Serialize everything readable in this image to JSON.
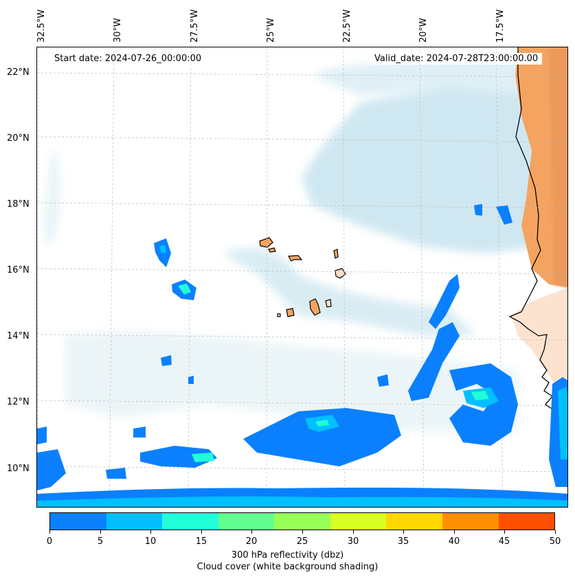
{
  "header": {
    "start_date": "Start date: 2024-07-26_00:00:00",
    "valid_date": "Valid_date: 2024-07-28T23:00:00.00"
  },
  "axes": {
    "lon_labels": [
      "32.5°W",
      "30°W",
      "27.5°W",
      "25°W",
      "22.5°W",
      "20°W",
      "17.5°W"
    ],
    "lat_labels": [
      "22°N",
      "20°N",
      "18°N",
      "16°N",
      "14°N",
      "12°N",
      "10°N"
    ],
    "lon_range": [
      -32.5,
      -15
    ],
    "lat_range": [
      8.9,
      22.8
    ],
    "grid": "dashed"
  },
  "colorbar": {
    "tick_labels": [
      "0",
      "5",
      "10",
      "15",
      "20",
      "25",
      "30",
      "35",
      "40",
      "45",
      "50"
    ],
    "colors": [
      "#0a80ff",
      "#00c0ff",
      "#20ffd8",
      "#60ff90",
      "#98ff58",
      "#d8ff20",
      "#ffd800",
      "#ff9000",
      "#ff5000"
    ],
    "caption_line1": "300 hPa reflectivity (dbz)",
    "caption_line2": "Cloud cover (white background shading)"
  },
  "legend_colors": {
    "land": "#f4a460",
    "cloud": "#add8e6",
    "coastline": "#000000"
  },
  "regions": [
    "Cape Verde Islands",
    "West African coast",
    "Atlantic Ocean"
  ]
}
